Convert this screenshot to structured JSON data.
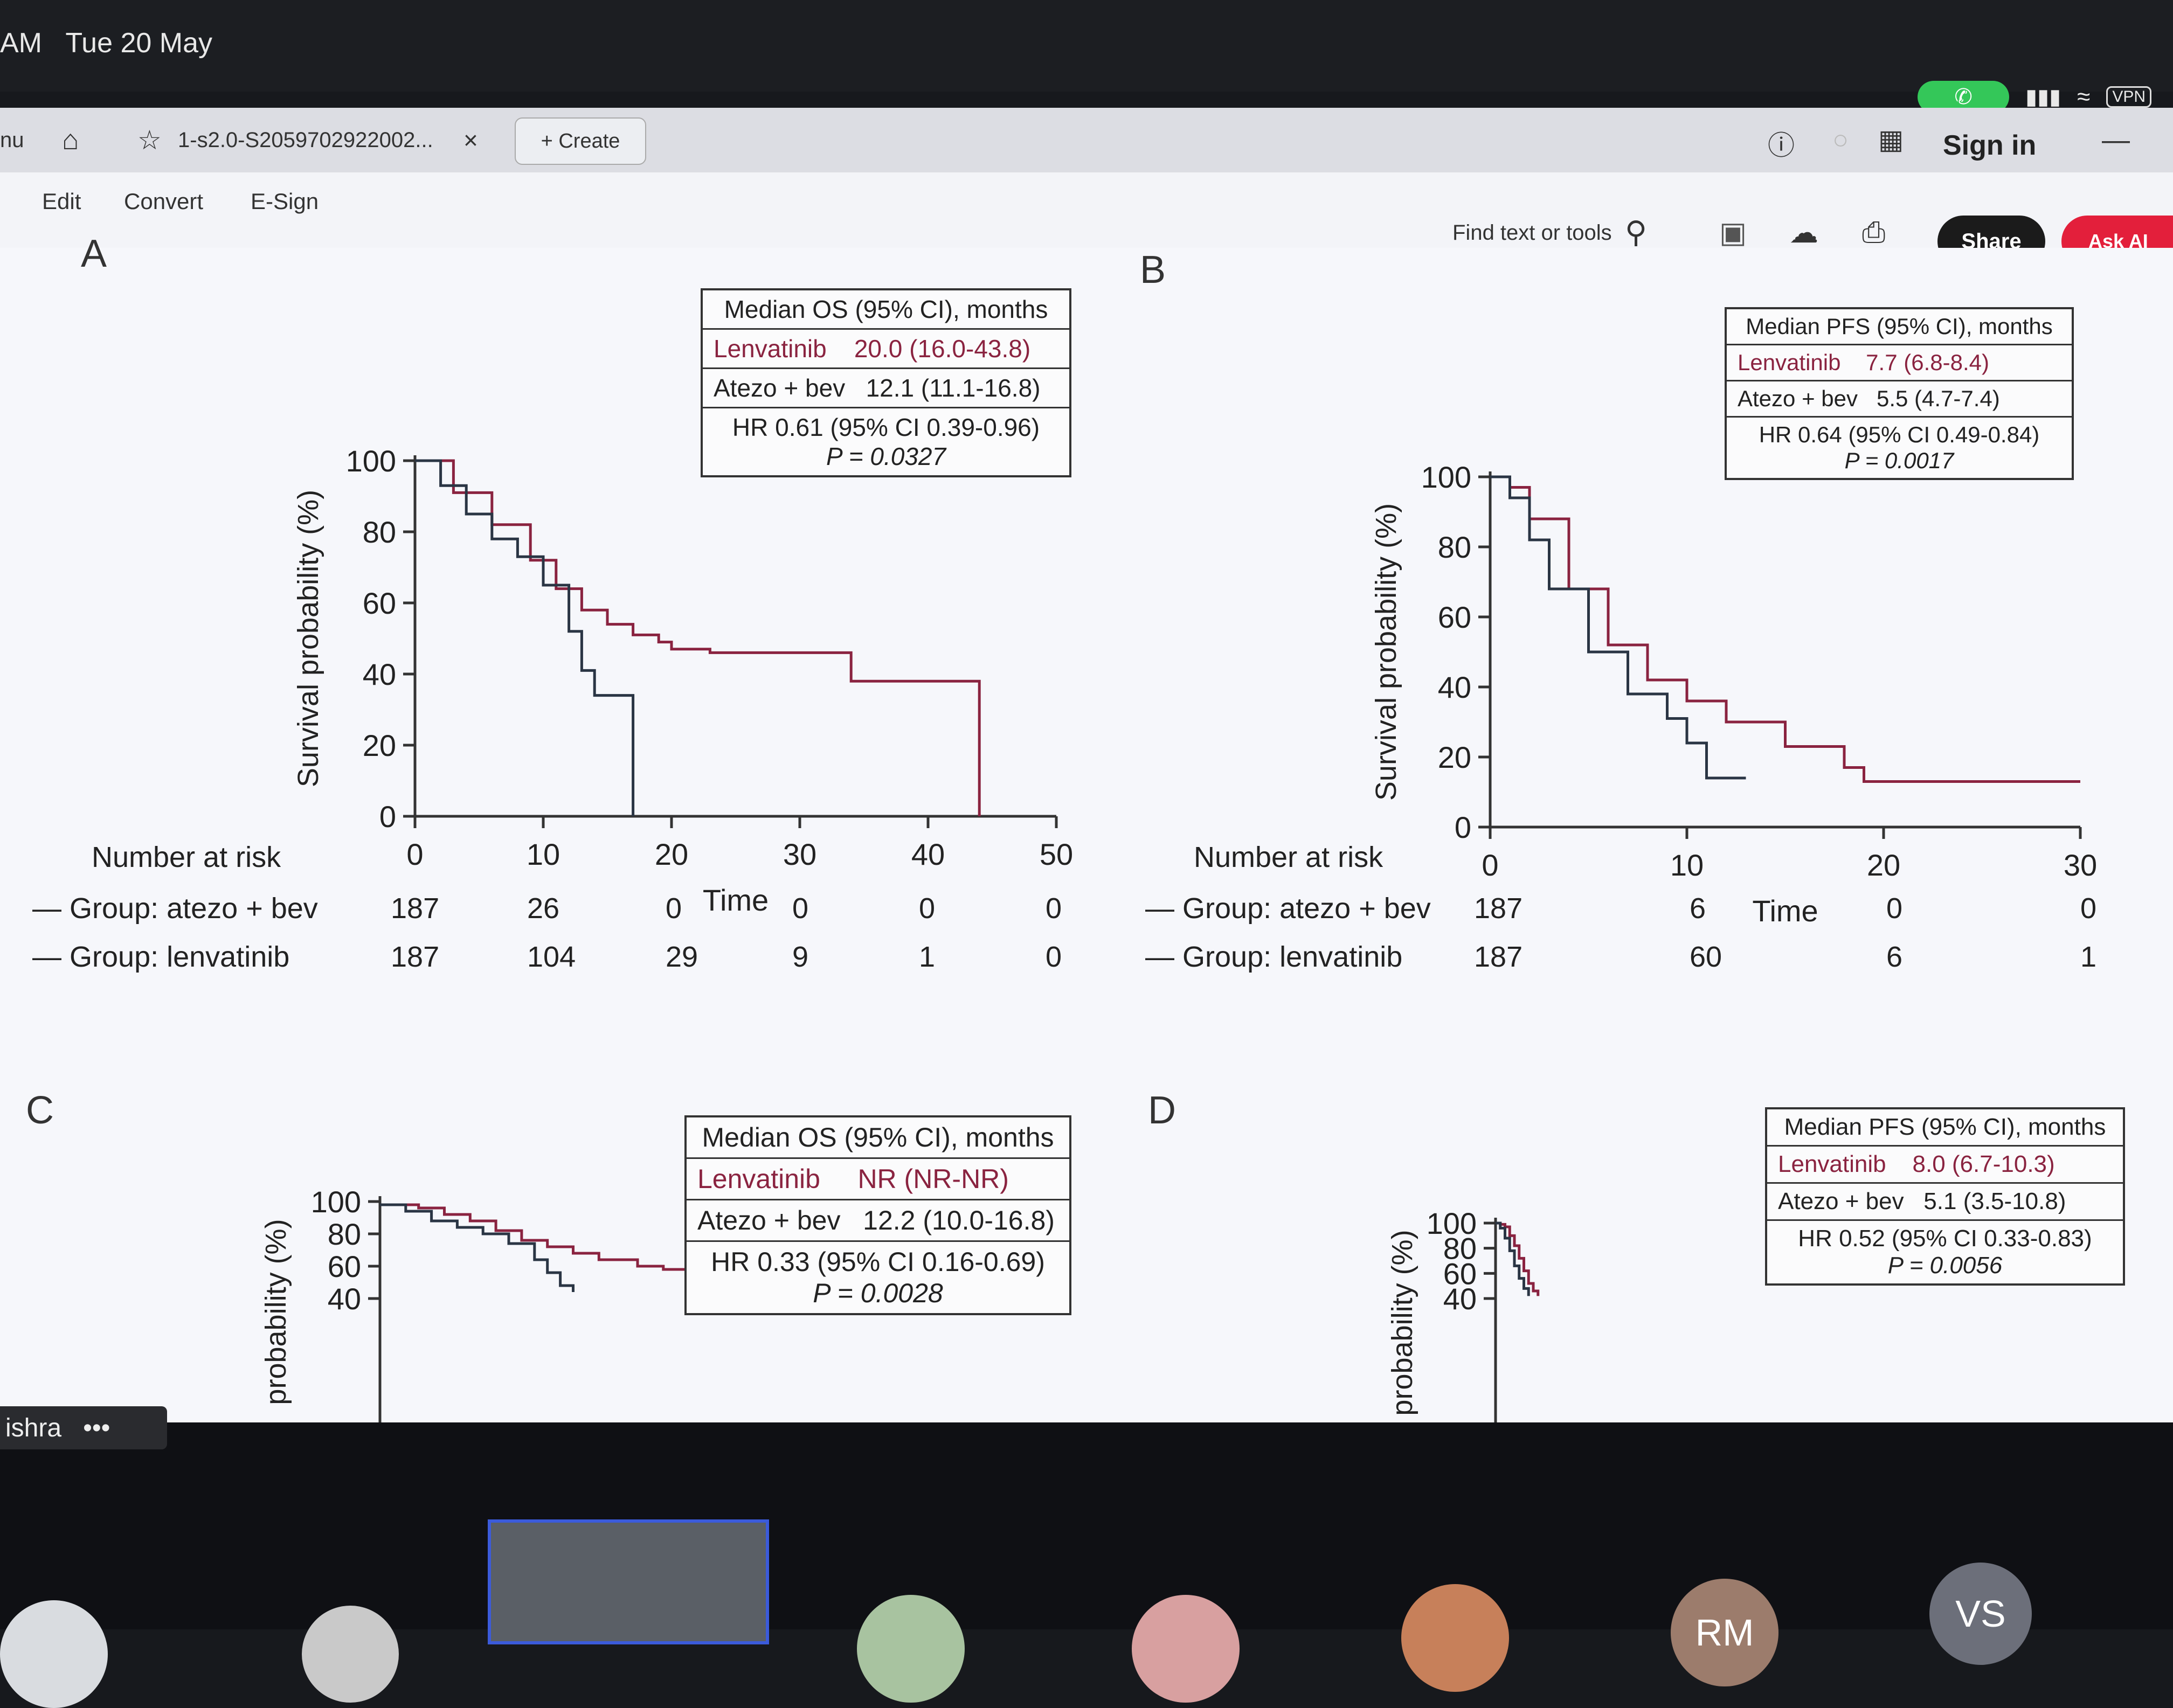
{
  "status": {
    "time_partial": "AM",
    "date": "Tue 20 May",
    "vpn": "VPN"
  },
  "browser": {
    "menu_partial": "nu",
    "tab_title": "1-s2.0-S2059702922002...",
    "create_label": "Create"
  },
  "toolbar": {
    "edit": "Edit",
    "convert": "Convert",
    "esign": "E-Sign",
    "sign_in": "Sign in",
    "find": "Find text or tools",
    "share": "Share",
    "ask": "Ask AI"
  },
  "panels": {
    "a": {
      "letter": "A",
      "box_title": "Median OS (95% CI), months",
      "lenv": "Lenvatinib",
      "lenv_val": "20.0 (16.0-43.8)",
      "atezo": "Atezo + bev",
      "atezo_val": "12.1 (11.1-16.8)",
      "hr": "HR 0.61 (95% CI 0.39-0.96)",
      "p": "P = 0.0327",
      "nar_title": "Number at risk",
      "group_atezo": "Group: atezo + bev",
      "group_lenv": "Group: lenvatinib",
      "risk_atezo": [
        "187",
        "26",
        "0",
        "0",
        "0",
        "0"
      ],
      "risk_lenv": [
        "187",
        "104",
        "29",
        "9",
        "1",
        "0"
      ]
    },
    "b": {
      "letter": "B",
      "box_title": "Median PFS (95% CI), months",
      "lenv": "Lenvatinib",
      "lenv_val": "7.7 (6.8-8.4)",
      "atezo": "Atezo + bev",
      "atezo_val": "5.5 (4.7-7.4)",
      "hr": "HR 0.64 (95% CI 0.49-0.84)",
      "p": "P = 0.0017",
      "nar_title": "Number at risk",
      "group_atezo": "Group: atezo + bev",
      "group_lenv": "Group: lenvatinib",
      "risk_atezo": [
        "187",
        "6",
        "0",
        "0"
      ],
      "risk_lenv": [
        "187",
        "60",
        "6",
        "1"
      ]
    },
    "c": {
      "letter": "C",
      "box_title": "Median OS (95% CI), months",
      "lenv": "Lenvatinib",
      "lenv_val": "NR (NR-NR)",
      "atezo": "Atezo + bev",
      "atezo_val": "12.2 (10.0-16.8)",
      "hr": "HR 0.33 (95% CI 0.16-0.69)",
      "p": "P = 0.0028"
    },
    "d": {
      "letter": "D",
      "box_title": "Median PFS (95% CI), months",
      "lenv": "Lenvatinib",
      "lenv_val": "8.0 (6.7-10.3)",
      "atezo": "Atezo + bev",
      "atezo_val": "5.1 (3.5-10.8)",
      "hr": "HR 0.52 (95% CI 0.33-0.83)",
      "p": "P = 0.0056"
    }
  },
  "chart_data": [
    {
      "type": "line",
      "panel": "A",
      "xlabel": "Time",
      "ylabel": "Survival probability (%)",
      "xlim": [
        0,
        50
      ],
      "ylim": [
        0,
        100
      ],
      "x_ticks": [
        "0",
        "10",
        "20",
        "30",
        "40",
        "50"
      ],
      "y_ticks": [
        "0",
        "20",
        "40",
        "60",
        "80",
        "100"
      ],
      "series": [
        {
          "name": "Lenvatinib",
          "color": "#8a2340",
          "x": [
            0,
            3,
            6,
            9,
            11,
            13,
            15,
            17,
            19,
            20,
            23,
            28,
            33,
            34,
            44,
            44
          ],
          "y": [
            100,
            91,
            82,
            72,
            64,
            58,
            54,
            51,
            49,
            47,
            46,
            46,
            46,
            38,
            38,
            0
          ]
        },
        {
          "name": "Atezo + bev",
          "color": "#2a3544",
          "x": [
            0,
            2,
            4,
            6,
            8,
            10,
            12,
            13,
            14,
            16,
            17,
            17
          ],
          "y": [
            100,
            93,
            85,
            78,
            73,
            65,
            52,
            41,
            34,
            34,
            34,
            0
          ]
        }
      ]
    },
    {
      "type": "line",
      "panel": "B",
      "xlabel": "Time",
      "ylabel": "Survival probability (%)",
      "xlim": [
        0,
        30
      ],
      "ylim": [
        0,
        100
      ],
      "x_ticks": [
        "0",
        "10",
        "20",
        "30"
      ],
      "y_ticks": [
        "0",
        "20",
        "40",
        "60",
        "80",
        "100"
      ],
      "series": [
        {
          "name": "Lenvatinib",
          "color": "#8a2340",
          "x": [
            0,
            1,
            2,
            4,
            6,
            8,
            10,
            12,
            15,
            18,
            19,
            30
          ],
          "y": [
            100,
            97,
            88,
            68,
            52,
            42,
            36,
            30,
            23,
            17,
            13,
            13
          ]
        },
        {
          "name": "Atezo + bev",
          "color": "#2a3544",
          "x": [
            0,
            1,
            2,
            3,
            5,
            7,
            9,
            10,
            11,
            13
          ],
          "y": [
            100,
            94,
            82,
            68,
            50,
            38,
            31,
            24,
            14,
            14
          ]
        }
      ]
    },
    {
      "type": "line",
      "panel": "C",
      "xlabel": "",
      "ylabel": "probability (%)",
      "xlim": [
        0,
        50
      ],
      "ylim": [
        40,
        100
      ],
      "y_ticks": [
        "40",
        "60",
        "80",
        "100"
      ],
      "series": [
        {
          "name": "Lenvatinib",
          "color": "#8a2340",
          "x": [
            0,
            3,
            5,
            7,
            9,
            11,
            13,
            15,
            17,
            20,
            22,
            25,
            40
          ],
          "y": [
            98,
            96,
            92,
            88,
            82,
            76,
            72,
            68,
            64,
            60,
            58,
            56,
            56
          ]
        },
        {
          "name": "Atezo + bev",
          "color": "#2a3544",
          "x": [
            0,
            2,
            4,
            6,
            8,
            10,
            12,
            13,
            14,
            15
          ],
          "y": [
            98,
            94,
            88,
            84,
            80,
            74,
            64,
            56,
            48,
            44
          ]
        }
      ]
    },
    {
      "type": "line",
      "panel": "D",
      "xlabel": "",
      "ylabel": "probability (%)",
      "xlim": [
        0,
        30
      ],
      "ylim": [
        40,
        100
      ],
      "y_ticks": [
        "40",
        "60",
        "80",
        "100"
      ],
      "series": [
        {
          "name": "Lenvatinib",
          "color": "#8a2340",
          "x": [
            0,
            0.5,
            1,
            1.5,
            2,
            2.5,
            3,
            3.5,
            4,
            4.5
          ],
          "y": [
            100,
            99,
            97,
            90,
            82,
            72,
            62,
            52,
            46,
            42
          ]
        },
        {
          "name": "Atezo + bev",
          "color": "#2a3544",
          "x": [
            0,
            0.5,
            1,
            1.5,
            2,
            2.5,
            3,
            3.5
          ],
          "y": [
            100,
            96,
            88,
            78,
            66,
            56,
            48,
            42
          ]
        }
      ]
    }
  ],
  "participant": {
    "name_partial": "ishra",
    "initials": [
      "RM",
      "VS"
    ]
  }
}
